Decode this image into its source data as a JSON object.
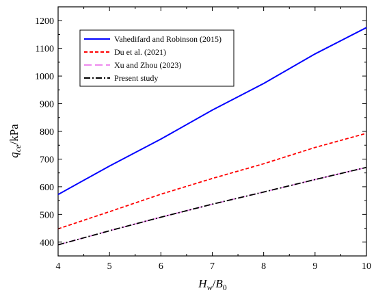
{
  "chart_data": {
    "type": "line",
    "xlabel": {
      "main": "H",
      "sub": "w",
      "sep": "/",
      "main2": "B",
      "sub2": "0"
    },
    "ylabel": {
      "main": "q",
      "sub": "ce",
      "unit": "/kPa"
    },
    "xlim": [
      4,
      10
    ],
    "ylim": [
      350,
      1250
    ],
    "xticks": [
      "4",
      "5",
      "6",
      "7",
      "8",
      "9",
      "10"
    ],
    "yticks": [
      "400",
      "500",
      "600",
      "700",
      "800",
      "900",
      "1000",
      "1100",
      "1200"
    ],
    "grid": false,
    "legend_position": "top-left",
    "series": [
      {
        "name": "Vahedifard and Robinson (2015)",
        "color": "#0000ff",
        "dash": "solid",
        "x": [
          4,
          5,
          6,
          7,
          8,
          9,
          10
        ],
        "y": [
          572,
          675,
          772,
          877,
          973,
          1080,
          1175
        ]
      },
      {
        "name": "Du et al. (2021)",
        "color": "#ff0000",
        "dash": "dash",
        "x": [
          4,
          5,
          6,
          7,
          8,
          9,
          10
        ],
        "y": [
          448,
          510,
          573,
          630,
          683,
          742,
          793
        ]
      },
      {
        "name": "Xu and Zhou (2023)",
        "color": "#ee88ee",
        "dash": "longdash",
        "x": [
          4,
          5,
          6,
          7,
          8,
          9,
          10
        ],
        "y": [
          390,
          441,
          490,
          537,
          581,
          626,
          670
        ]
      },
      {
        "name": "Present study",
        "color": "#000000",
        "dash": "dashdot",
        "x": [
          4,
          5,
          6,
          7,
          8,
          9,
          10
        ],
        "y": [
          390,
          441,
          490,
          537,
          581,
          626,
          670
        ]
      }
    ]
  }
}
